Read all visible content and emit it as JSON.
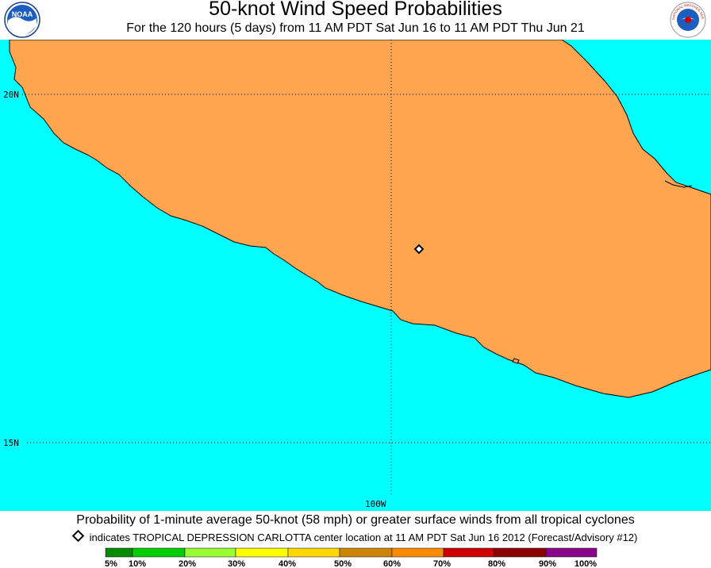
{
  "header": {
    "title": "50-knot Wind Speed Probabilities",
    "subtitle": "For the 120 hours (5 days) from 11 AM PDT Sat Jun 16 to 11 AM PDT Thu Jun 21",
    "left_logo": {
      "icon": "noaa-logo",
      "text": "NOAA"
    },
    "right_logo": {
      "icon": "nws-logo",
      "text": "NATIONAL WEATHER SERVICE"
    }
  },
  "map": {
    "colors": {
      "ocean": "#00ffff",
      "land": "#ffa54f",
      "coast": "#000000",
      "gridline": "#000000"
    },
    "lat_labels": [
      "20N",
      "15N"
    ],
    "lon_labels": [
      "100W"
    ],
    "storm_marker": {
      "icon": "diamond-marker-icon",
      "name": "TROPICAL DEPRESSION CARLOTTA"
    }
  },
  "footer": {
    "caption": "Probability of 1-minute average 50-knot (58 mph) or greater surface winds from all tropical cyclones",
    "note": "indicates TROPICAL DEPRESSION CARLOTTA center location at 11 AM PDT Sat Jun 16 2012 (Forecast/Advisory #12)"
  },
  "legend": {
    "labels": [
      "5%",
      "10%",
      "20%",
      "30%",
      "40%",
      "50%",
      "60%",
      "70%",
      "80%",
      "90%",
      "100%"
    ],
    "colors": [
      "#008b00",
      "#00cd00",
      "#9aff32",
      "#ffff00",
      "#ffd700",
      "#cd8500",
      "#ff8c00",
      "#cd0000",
      "#8b0000",
      "#8b008b"
    ]
  }
}
